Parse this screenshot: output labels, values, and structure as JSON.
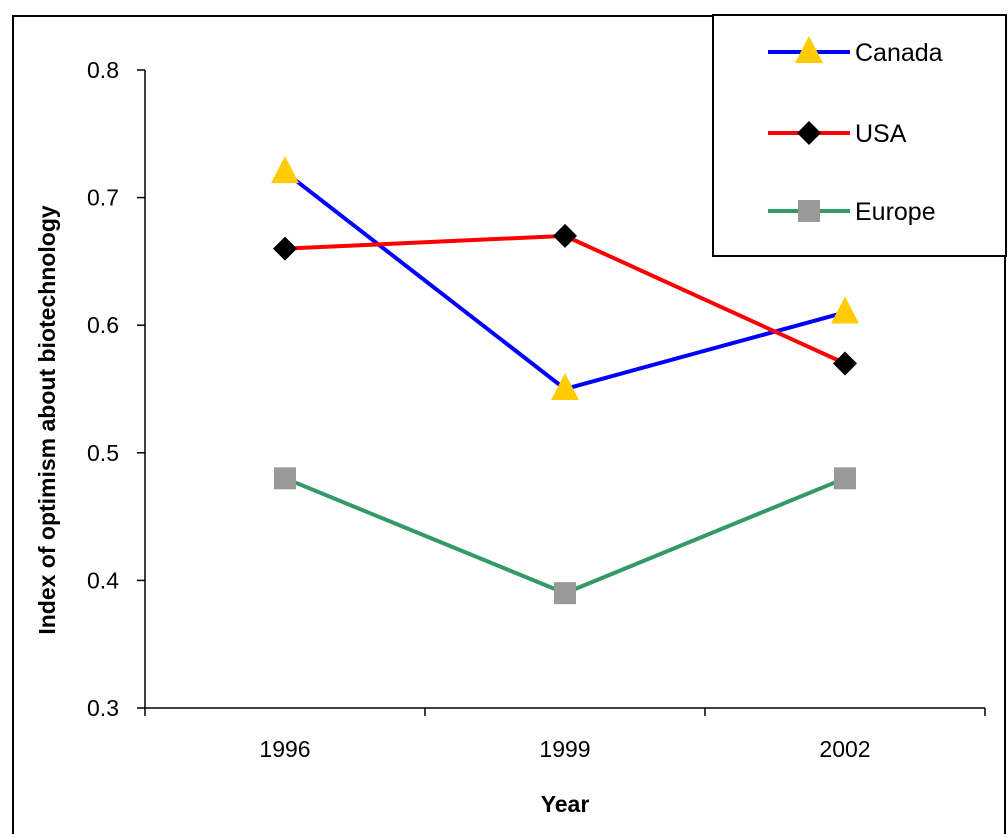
{
  "chart_data": {
    "type": "line",
    "categories": [
      "1996",
      "1999",
      "2002"
    ],
    "xlabel": "Year",
    "ylabel": "Index of optimism about biotechnology",
    "ylim": [
      0.3,
      0.8
    ],
    "yticks": [
      "0.3",
      "0.4",
      "0.5",
      "0.6",
      "0.7",
      "0.8"
    ],
    "grid": false,
    "legend_position": "top-right",
    "series": [
      {
        "name": "Canada",
        "values": [
          0.72,
          0.55,
          0.61
        ],
        "line_color": "#0000ff",
        "marker": "triangle",
        "marker_color": "#ffcc00"
      },
      {
        "name": "USA",
        "values": [
          0.66,
          0.67,
          0.57
        ],
        "line_color": "#ff0000",
        "marker": "diamond",
        "marker_color": "#000000"
      },
      {
        "name": "Europe",
        "values": [
          0.48,
          0.39,
          0.48
        ],
        "line_color": "#339966",
        "marker": "square",
        "marker_color": "#999999"
      }
    ]
  }
}
